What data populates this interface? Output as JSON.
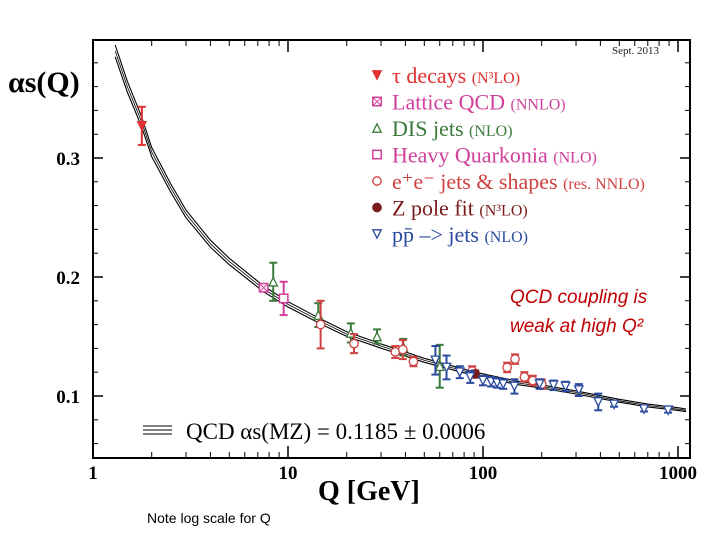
{
  "chart_data": {
    "type": "scatter",
    "title": "",
    "date_label": "Sept. 2013",
    "ylabel": "αs(Q)",
    "xlabel": "Q [GeV]",
    "xscale": "log",
    "xlim": [
      1,
      1100
    ],
    "ylim": [
      0.05,
      0.4
    ],
    "x_ticks": [
      "1",
      "10",
      "100",
      "1000"
    ],
    "x_tick_values": [
      1,
      10,
      100,
      1000
    ],
    "y_ticks": [
      "0.1",
      "0.2",
      "0.3"
    ],
    "y_tick_values": [
      0.1,
      0.2,
      0.3
    ],
    "grid": false,
    "legend_position": "top-right",
    "series": [
      {
        "name": "τ decays",
        "order": "(N³LO)",
        "color": "#e03030",
        "marker": "triangle-down-filled",
        "points": [
          {
            "x": 1.78,
            "y": 0.327,
            "err": 0.016
          }
        ]
      },
      {
        "name": "Lattice QCD",
        "order": "(NNLO)",
        "color": "#d0409a",
        "marker": "square-crossed",
        "points": [
          {
            "x": 7.5,
            "y": 0.191,
            "err": 0.003
          }
        ]
      },
      {
        "name": "DIS jets",
        "order": "(NLO)",
        "color": "#3a7a3a",
        "marker": "triangle-up-open",
        "points": [
          {
            "x": 8.4,
            "y": 0.196,
            "err": 0.016
          },
          {
            "x": 14.3,
            "y": 0.168,
            "err": 0.01
          },
          {
            "x": 21,
            "y": 0.153,
            "err": 0.008
          },
          {
            "x": 28.6,
            "y": 0.15,
            "err": 0.006
          },
          {
            "x": 39,
            "y": 0.141,
            "err": 0.007
          },
          {
            "x": 60,
            "y": 0.125,
            "err": 0.018
          }
        ]
      },
      {
        "name": "Heavy Quarkonia",
        "order": "(NLO)",
        "color": "#d0409a",
        "marker": "square-open",
        "points": [
          {
            "x": 9.5,
            "y": 0.182,
            "err": 0.014
          }
        ]
      },
      {
        "name": "e⁺e⁻ jets & shapes",
        "order": "(res. NNLO)",
        "color": "#d04040",
        "marker": "circle-open",
        "points": [
          {
            "x": 14.7,
            "y": 0.16,
            "err": 0.02
          },
          {
            "x": 21.8,
            "y": 0.144,
            "err": 0.008
          },
          {
            "x": 35.5,
            "y": 0.137,
            "err": 0.005
          },
          {
            "x": 38.8,
            "y": 0.139,
            "err": 0.008
          },
          {
            "x": 44,
            "y": 0.129,
            "err": 0.004
          },
          {
            "x": 88,
            "y": 0.121,
            "err": 0.004
          },
          {
            "x": 133,
            "y": 0.124,
            "err": 0.004
          },
          {
            "x": 146,
            "y": 0.131,
            "err": 0.004
          },
          {
            "x": 163,
            "y": 0.116,
            "err": 0.004
          },
          {
            "x": 180,
            "y": 0.113,
            "err": 0.004
          },
          {
            "x": 200,
            "y": 0.11,
            "err": 0.004
          }
        ]
      },
      {
        "name": "Z pole fit",
        "order": "(N³LO)",
        "color": "#7a1a1a",
        "marker": "circle-filled",
        "points": [
          {
            "x": 91.2,
            "y": 0.1185,
            "err": 0.003
          }
        ]
      },
      {
        "name": "pp̄ –> jets",
        "order": "(NLO)",
        "color": "#2a4aa0",
        "marker": "triangle-down-open",
        "points": [
          {
            "x": 57,
            "y": 0.13,
            "err": 0.012
          },
          {
            "x": 65,
            "y": 0.124,
            "err": 0.01
          },
          {
            "x": 76,
            "y": 0.12,
            "err": 0.005
          },
          {
            "x": 86,
            "y": 0.116,
            "err": 0.005
          },
          {
            "x": 100,
            "y": 0.113,
            "err": 0.004
          },
          {
            "x": 110,
            "y": 0.112,
            "err": 0.004
          },
          {
            "x": 118,
            "y": 0.111,
            "err": 0.004
          },
          {
            "x": 127,
            "y": 0.11,
            "err": 0.004
          },
          {
            "x": 145,
            "y": 0.108,
            "err": 0.006
          },
          {
            "x": 195,
            "y": 0.11,
            "err": 0.004
          },
          {
            "x": 230,
            "y": 0.109,
            "err": 0.004
          },
          {
            "x": 265,
            "y": 0.108,
            "err": 0.004
          },
          {
            "x": 310,
            "y": 0.105,
            "err": 0.005
          },
          {
            "x": 390,
            "y": 0.095,
            "err": 0.007
          },
          {
            "x": 470,
            "y": 0.093,
            "err": 0.002
          },
          {
            "x": 670,
            "y": 0.089,
            "err": 0.002
          },
          {
            "x": 890,
            "y": 0.088,
            "err": 0.002
          }
        ]
      }
    ],
    "theory_curve": {
      "label": "QCD αs(MZ) = 0.1185 ± 0.0006",
      "x": [
        1.3,
        1.5,
        1.78,
        2,
        2.5,
        3,
        4,
        5,
        7.5,
        10,
        15,
        20,
        30,
        50,
        91.2,
        150,
        200,
        300,
        500,
        700,
        1000,
        1100
      ],
      "y": [
        0.39,
        0.36,
        0.33,
        0.305,
        0.275,
        0.253,
        0.228,
        0.213,
        0.19,
        0.177,
        0.162,
        0.152,
        0.142,
        0.13,
        0.1185,
        0.111,
        0.108,
        0.103,
        0.096,
        0.092,
        0.089,
        0.088
      ]
    },
    "annotations": [
      "QCD coupling is",
      "weak at high Q²"
    ]
  },
  "note": "Note log scale for Q"
}
